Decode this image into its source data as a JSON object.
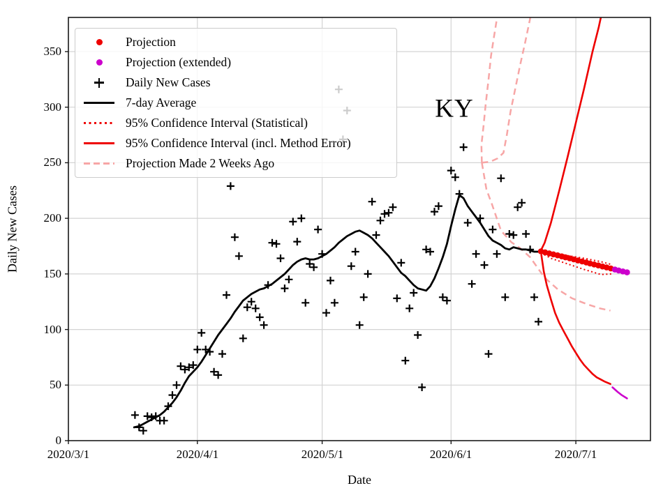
{
  "title": "KY",
  "axes": {
    "x_label": "Date",
    "y_label": "Daily New Cases",
    "x_ticks": [
      {
        "label": "2020/3/1",
        "day": 0
      },
      {
        "label": "2020/4/1",
        "day": 31
      },
      {
        "label": "2020/5/1",
        "day": 61
      },
      {
        "label": "2020/6/1",
        "day": 92
      },
      {
        "label": "2020/7/1",
        "day": 122
      }
    ],
    "y_ticks": [
      0,
      50,
      100,
      150,
      200,
      250,
      300,
      350
    ]
  },
  "legend": {
    "items": [
      {
        "marker": "dot-red",
        "label": "Projection"
      },
      {
        "marker": "dot-magenta",
        "label": "Projection (extended)"
      },
      {
        "marker": "plus",
        "label": "Daily New Cases"
      },
      {
        "marker": "line-black",
        "label": "7-day Average"
      },
      {
        "marker": "dotted-red",
        "label": "95% Confidence Interval (Statistical)"
      },
      {
        "marker": "line-red",
        "label": "95% Confidence Interval (incl. Method Error)"
      },
      {
        "marker": "dashed-pink",
        "label": "Projection Made 2 Weeks Ago"
      }
    ]
  },
  "colors": {
    "red": "#ee0000",
    "magenta": "#cc00cc",
    "pink_dashed": "#f7a6a6",
    "black": "#000000",
    "grid": "#d3d3d3",
    "spine": "#1a1a1a"
  },
  "chart_data": {
    "type": "line",
    "title": "KY",
    "xlabel": "Date",
    "ylabel": "Daily New Cases",
    "x_unit": "days since 2020/3/1",
    "xlim_days": [
      0,
      140
    ],
    "ylim": [
      0,
      381
    ],
    "grid": true,
    "legend_position": "upper left",
    "daily_new_cases_start_date": "2020/3/17",
    "daily_new_cases": [
      [
        16,
        23
      ],
      [
        17,
        12
      ],
      [
        18,
        9
      ],
      [
        19,
        22
      ],
      [
        20,
        21
      ],
      [
        21,
        22
      ],
      [
        22,
        18
      ],
      [
        23,
        18
      ],
      [
        24,
        31
      ],
      [
        25,
        41
      ],
      [
        26,
        50
      ],
      [
        27,
        67
      ],
      [
        28,
        64
      ],
      [
        29,
        66
      ],
      [
        30,
        68
      ],
      [
        31,
        82
      ],
      [
        32,
        97
      ],
      [
        33,
        82
      ],
      [
        34,
        80
      ],
      [
        35,
        62
      ],
      [
        36,
        59
      ],
      [
        37,
        78
      ],
      [
        38,
        131
      ],
      [
        39,
        229
      ],
      [
        40,
        183
      ],
      [
        41,
        166
      ],
      [
        42,
        92
      ],
      [
        43,
        120
      ],
      [
        44,
        125
      ],
      [
        45,
        119
      ],
      [
        46,
        111
      ],
      [
        47,
        104
      ],
      [
        48,
        140
      ],
      [
        49,
        178
      ],
      [
        50,
        177
      ],
      [
        51,
        164
      ],
      [
        52,
        137
      ],
      [
        53,
        145
      ],
      [
        54,
        197
      ],
      [
        55,
        179
      ],
      [
        56,
        200
      ],
      [
        57,
        124
      ],
      [
        58,
        159
      ],
      [
        59,
        156
      ],
      [
        60,
        190
      ],
      [
        61,
        168
      ],
      [
        62,
        115
      ],
      [
        63,
        144
      ],
      [
        64,
        124
      ],
      [
        65,
        316
      ],
      [
        66,
        271
      ],
      [
        67,
        297
      ],
      [
        68,
        157
      ],
      [
        69,
        170
      ],
      [
        70,
        104
      ],
      [
        71,
        129
      ],
      [
        72,
        150
      ],
      [
        73,
        215
      ],
      [
        74,
        185
      ],
      [
        75,
        198
      ],
      [
        76,
        204
      ],
      [
        77,
        205
      ],
      [
        78,
        210
      ],
      [
        79,
        128
      ],
      [
        80,
        160
      ],
      [
        81,
        72
      ],
      [
        82,
        119
      ],
      [
        83,
        133
      ],
      [
        84,
        95
      ],
      [
        85,
        48
      ],
      [
        86,
        172
      ],
      [
        87,
        170
      ],
      [
        88,
        206
      ],
      [
        89,
        211
      ],
      [
        90,
        129
      ],
      [
        91,
        126
      ],
      [
        92,
        243
      ],
      [
        93,
        237
      ],
      [
        94,
        222
      ],
      [
        95,
        264
      ],
      [
        96,
        196
      ],
      [
        97,
        141
      ],
      [
        98,
        168
      ],
      [
        99,
        200
      ],
      [
        100,
        158
      ],
      [
        101,
        78
      ],
      [
        102,
        190
      ],
      [
        103,
        168
      ],
      [
        104,
        236
      ],
      [
        105,
        129
      ],
      [
        106,
        186
      ],
      [
        107,
        185
      ],
      [
        108,
        210
      ],
      [
        109,
        214
      ],
      [
        110,
        186
      ],
      [
        111,
        172
      ],
      [
        112,
        129
      ],
      [
        113,
        107
      ]
    ],
    "avg7": [
      [
        15.8,
        12
      ],
      [
        17,
        13
      ],
      [
        18,
        15
      ],
      [
        19,
        17
      ],
      [
        20,
        19
      ],
      [
        21,
        21
      ],
      [
        22,
        23
      ],
      [
        23,
        26
      ],
      [
        24,
        30
      ],
      [
        25,
        34
      ],
      [
        26,
        39
      ],
      [
        27,
        45
      ],
      [
        28,
        52
      ],
      [
        29,
        58
      ],
      [
        30,
        62
      ],
      [
        31,
        66
      ],
      [
        32,
        71
      ],
      [
        33,
        77
      ],
      [
        34,
        83
      ],
      [
        35,
        89
      ],
      [
        36,
        95
      ],
      [
        37,
        100
      ],
      [
        38,
        105
      ],
      [
        39,
        110
      ],
      [
        40,
        116
      ],
      [
        41,
        121
      ],
      [
        42,
        126
      ],
      [
        43,
        129
      ],
      [
        44,
        132
      ],
      [
        45,
        134
      ],
      [
        46,
        136
      ],
      [
        47,
        137
      ],
      [
        48,
        139
      ],
      [
        49,
        141
      ],
      [
        50,
        144
      ],
      [
        51,
        147
      ],
      [
        52,
        150
      ],
      [
        53,
        154
      ],
      [
        54,
        158
      ],
      [
        55,
        161
      ],
      [
        56,
        163
      ],
      [
        57,
        164
      ],
      [
        58,
        163
      ],
      [
        59,
        163
      ],
      [
        60,
        164
      ],
      [
        61,
        166
      ],
      [
        62,
        168
      ],
      [
        63,
        171
      ],
      [
        64,
        174
      ],
      [
        65,
        178
      ],
      [
        66,
        181
      ],
      [
        67,
        184
      ],
      [
        68,
        186
      ],
      [
        69,
        188
      ],
      [
        70,
        189
      ],
      [
        71,
        187
      ],
      [
        72,
        185
      ],
      [
        73,
        182
      ],
      [
        74,
        178
      ],
      [
        75,
        174
      ],
      [
        76,
        170
      ],
      [
        77,
        166
      ],
      [
        78,
        161
      ],
      [
        79,
        156
      ],
      [
        80,
        151
      ],
      [
        81,
        148
      ],
      [
        82,
        144
      ],
      [
        83,
        140
      ],
      [
        84,
        137
      ],
      [
        85,
        136
      ],
      [
        86,
        135
      ],
      [
        87,
        139
      ],
      [
        88,
        146
      ],
      [
        89,
        155
      ],
      [
        90,
        165
      ],
      [
        91,
        177
      ],
      [
        92,
        193
      ],
      [
        93,
        208
      ],
      [
        94,
        221
      ],
      [
        95,
        218
      ],
      [
        96,
        211
      ],
      [
        97,
        206
      ],
      [
        98,
        201
      ],
      [
        99,
        196
      ],
      [
        100,
        190
      ],
      [
        101,
        184
      ],
      [
        102,
        180
      ],
      [
        103,
        178
      ],
      [
        104,
        176
      ],
      [
        105,
        173
      ],
      [
        106,
        172
      ],
      [
        107,
        174
      ],
      [
        108,
        173
      ],
      [
        109,
        172
      ],
      [
        110,
        172
      ],
      [
        111,
        171
      ],
      [
        112,
        170
      ],
      [
        113,
        170
      ]
    ],
    "projection_dots": [
      [
        113.6,
        170.3
      ],
      [
        114.6,
        169.4
      ],
      [
        115.6,
        168.5
      ],
      [
        116.6,
        167.6
      ],
      [
        117.6,
        166.7
      ],
      [
        118.6,
        165.8
      ],
      [
        119.5,
        164.9
      ],
      [
        120.5,
        164.0
      ],
      [
        121.5,
        163.1
      ],
      [
        122.5,
        162.1
      ],
      [
        123.5,
        161.2
      ],
      [
        124.5,
        160.3
      ],
      [
        125.4,
        159.4
      ],
      [
        126.4,
        158.5
      ],
      [
        127.4,
        157.6
      ],
      [
        128.4,
        156.7
      ],
      [
        129.4,
        155.8
      ],
      [
        130.4,
        154.9
      ]
    ],
    "projection_extended_dots": [
      [
        131.4,
        153.9
      ],
      [
        132.3,
        153.1
      ],
      [
        133.3,
        152.2
      ],
      [
        134.3,
        151.4
      ]
    ],
    "ci_method_upper": [
      [
        113.7,
        172
      ],
      [
        114.5,
        178
      ],
      [
        116,
        196
      ],
      [
        118,
        225
      ],
      [
        120,
        255
      ],
      [
        122,
        286
      ],
      [
        124,
        317
      ],
      [
        126,
        350
      ],
      [
        127.5,
        372
      ],
      [
        128.6,
        391
      ]
    ],
    "ci_method_lower": [
      [
        113.7,
        167
      ],
      [
        114.3,
        152
      ],
      [
        115,
        140
      ],
      [
        116,
        127
      ],
      [
        117,
        115
      ],
      [
        118,
        106
      ],
      [
        119,
        99
      ],
      [
        120,
        92
      ],
      [
        121,
        85
      ],
      [
        122,
        79
      ],
      [
        123,
        73
      ],
      [
        124,
        68
      ],
      [
        125,
        64
      ],
      [
        126,
        60
      ],
      [
        127,
        57
      ],
      [
        128,
        55
      ],
      [
        129,
        53
      ],
      [
        130.3,
        51
      ]
    ],
    "ci_method_lower_extended": [
      [
        130.8,
        48
      ],
      [
        132,
        44
      ],
      [
        133,
        41
      ],
      [
        134.3,
        38
      ]
    ],
    "ci_stat_upper": [
      [
        113.6,
        170.5
      ],
      [
        116,
        169
      ],
      [
        120,
        166.5
      ],
      [
        124,
        164
      ],
      [
        128,
        161
      ],
      [
        130.5,
        158.5
      ]
    ],
    "ci_stat_lower": [
      [
        113.6,
        169
      ],
      [
        116,
        164
      ],
      [
        120,
        159
      ],
      [
        124,
        154
      ],
      [
        128,
        149.5
      ],
      [
        130.5,
        150
      ]
    ],
    "projection_2w_central": [
      [
        99.4,
        250
      ],
      [
        100.5,
        226
      ],
      [
        101.8,
        213
      ],
      [
        104,
        189
      ],
      [
        106.5,
        178.5
      ],
      [
        108.5,
        173.5
      ],
      [
        111,
        165
      ],
      [
        114.4,
        147
      ],
      [
        117.7,
        136
      ],
      [
        121.1,
        128
      ],
      [
        124.5,
        123
      ],
      [
        127.8,
        119
      ],
      [
        130.3,
        117
      ]
    ],
    "projection_2w_upper_a": [
      [
        99.4,
        250
      ],
      [
        99.3,
        266
      ],
      [
        99.8,
        283
      ],
      [
        100.3,
        302
      ],
      [
        101,
        325
      ],
      [
        101.6,
        346
      ],
      [
        102.3,
        363
      ],
      [
        102.9,
        377
      ],
      [
        103.3,
        386
      ]
    ],
    "projection_2w_upper_b": [
      [
        99.4,
        250
      ],
      [
        101.5,
        251
      ],
      [
        103.2,
        254
      ],
      [
        104.6,
        259
      ],
      [
        105.4,
        275
      ],
      [
        106.3,
        296
      ],
      [
        107.4,
        316
      ],
      [
        108.6,
        338
      ],
      [
        109.8,
        358
      ],
      [
        110.9,
        378
      ],
      [
        111.3,
        386
      ]
    ]
  }
}
